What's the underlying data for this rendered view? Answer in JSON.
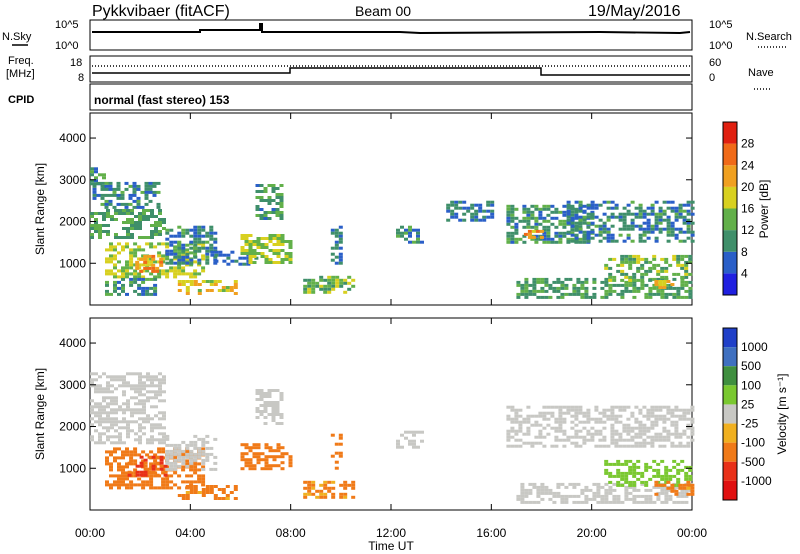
{
  "header": {
    "radar": "Pykkvibaer (fitACF)",
    "beam": "Beam 00",
    "date": "19/May/2016"
  },
  "noise_panel": {
    "left_label": "N.Sky",
    "right_label": "N.Search",
    "ticks": [
      "10^5",
      "10^0"
    ]
  },
  "freq_panel": {
    "left_label_1": "Freq.",
    "left_label_2": "[MHz]",
    "left_ticks": [
      "18",
      "8"
    ],
    "right_label": "Nave",
    "right_ticks": [
      "60",
      "0"
    ]
  },
  "cpid": {
    "label": "CPID",
    "text": "normal (fast stereo) 153"
  },
  "x_axis": {
    "label": "Time UT",
    "ticks": [
      "00:00",
      "04:00",
      "08:00",
      "12:00",
      "16:00",
      "20:00",
      "00:00"
    ]
  },
  "colors": {
    "power_scale": [
      "#2020e0",
      "#2a5fc8",
      "#3f8f6a",
      "#62b04a",
      "#d8d020",
      "#f0a020",
      "#f06a18",
      "#e02010"
    ],
    "velocity_scale": [
      "#2040c8",
      "#3f70c0",
      "#3f8f3f",
      "#7ac830",
      "#c8c8c4",
      "#f0b020",
      "#f07a18",
      "#e83018",
      "#e01010"
    ]
  },
  "chart_data": [
    {
      "type": "heatmap",
      "panel": "power",
      "ylabel": "Slant Range [km]",
      "ylim": [
        0,
        4600
      ],
      "y_ticks": [
        "1000",
        "2000",
        "3000",
        "4000"
      ],
      "xlim_hours": [
        0,
        24
      ],
      "colorbar_label": "Power [dB]",
      "colorbar_ticks": [
        "4",
        "8",
        "12",
        "16",
        "20",
        "24",
        "28"
      ],
      "colorbar_range": [
        0,
        32
      ],
      "regions": [
        {
          "t0": 0.0,
          "t1": 0.5,
          "r0": 2800,
          "r1": 3300,
          "v": 10
        },
        {
          "t0": 0.1,
          "t1": 2.8,
          "r0": 2350,
          "r1": 2950,
          "v": 9
        },
        {
          "t0": 0.0,
          "t1": 3.0,
          "r0": 1600,
          "r1": 2300,
          "v": 12
        },
        {
          "t0": 0.6,
          "t1": 4.5,
          "r0": 700,
          "r1": 1500,
          "v": 16
        },
        {
          "t0": 1.8,
          "t1": 2.8,
          "r0": 800,
          "r1": 1200,
          "v": 24
        },
        {
          "t0": 0.6,
          "t1": 2.6,
          "r0": 250,
          "r1": 650,
          "v": 10
        },
        {
          "t0": 3.0,
          "t1": 5.0,
          "r0": 1000,
          "r1": 1900,
          "v": 9
        },
        {
          "t0": 4.8,
          "t1": 6.6,
          "r0": 1000,
          "r1": 1300,
          "v": 8
        },
        {
          "t0": 3.5,
          "t1": 5.8,
          "r0": 300,
          "r1": 600,
          "v": 18
        },
        {
          "t0": 6.6,
          "t1": 7.6,
          "r0": 2100,
          "r1": 2900,
          "v": 11
        },
        {
          "t0": 6.0,
          "t1": 8.0,
          "r0": 1000,
          "r1": 1700,
          "v": 16
        },
        {
          "t0": 8.5,
          "t1": 10.5,
          "r0": 300,
          "r1": 700,
          "v": 14
        },
        {
          "t0": 9.6,
          "t1": 10.0,
          "r0": 1000,
          "r1": 1900,
          "v": 8
        },
        {
          "t0": 12.2,
          "t1": 13.2,
          "r0": 1500,
          "r1": 1900,
          "v": 10
        },
        {
          "t0": 14.2,
          "t1": 16.0,
          "r0": 2000,
          "r1": 2500,
          "v": 8
        },
        {
          "t0": 16.6,
          "t1": 20.0,
          "r0": 1500,
          "r1": 2400,
          "v": 10
        },
        {
          "t0": 17.3,
          "t1": 18.0,
          "r0": 1600,
          "r1": 1800,
          "v": 22
        },
        {
          "t0": 19.0,
          "t1": 24.0,
          "r0": 1500,
          "r1": 2500,
          "v": 9
        },
        {
          "t0": 17.0,
          "t1": 24.0,
          "r0": 200,
          "r1": 650,
          "v": 12
        },
        {
          "t0": 20.5,
          "t1": 24.0,
          "r0": 600,
          "r1": 1200,
          "v": 14
        },
        {
          "t0": 22.5,
          "t1": 23.2,
          "r0": 400,
          "r1": 600,
          "v": 22
        }
      ]
    },
    {
      "type": "heatmap",
      "panel": "velocity",
      "ylabel": "Slant Range [km]",
      "ylim": [
        0,
        4600
      ],
      "y_ticks": [
        "1000",
        "2000",
        "3000",
        "4000"
      ],
      "xlim_hours": [
        0,
        24
      ],
      "colorbar_label": "Velocity [m s⁻¹]",
      "colorbar_ticks": [
        "1000",
        "500",
        "100",
        "25",
        "-25",
        "-100",
        "-500",
        "-1000"
      ],
      "regions": [
        {
          "t0": 0.0,
          "t1": 3.0,
          "r0": 1600,
          "r1": 3300,
          "v": 0
        },
        {
          "t0": 0.6,
          "t1": 4.5,
          "r0": 500,
          "r1": 1500,
          "v": -300
        },
        {
          "t0": 1.5,
          "t1": 3.0,
          "r0": 800,
          "r1": 1300,
          "v": -600
        },
        {
          "t0": 3.0,
          "t1": 5.0,
          "r0": 1000,
          "r1": 1800,
          "v": 0
        },
        {
          "t0": 3.5,
          "t1": 5.8,
          "r0": 300,
          "r1": 600,
          "v": -150
        },
        {
          "t0": 6.0,
          "t1": 8.0,
          "r0": 1000,
          "r1": 1600,
          "v": -200
        },
        {
          "t0": 6.6,
          "t1": 7.6,
          "r0": 2100,
          "r1": 2900,
          "v": 0
        },
        {
          "t0": 8.5,
          "t1": 10.5,
          "r0": 300,
          "r1": 700,
          "v": -120
        },
        {
          "t0": 9.6,
          "t1": 10.0,
          "r0": 1000,
          "r1": 1900,
          "v": -200
        },
        {
          "t0": 12.2,
          "t1": 13.2,
          "r0": 1500,
          "r1": 1900,
          "v": 0
        },
        {
          "t0": 16.6,
          "t1": 24.0,
          "r0": 1500,
          "r1": 2500,
          "v": 0
        },
        {
          "t0": 17.0,
          "t1": 24.0,
          "r0": 200,
          "r1": 650,
          "v": 0
        },
        {
          "t0": 20.5,
          "t1": 24.0,
          "r0": 600,
          "r1": 1200,
          "v": 60
        },
        {
          "t0": 22.5,
          "t1": 24.0,
          "r0": 400,
          "r1": 700,
          "v": -150
        }
      ]
    }
  ]
}
